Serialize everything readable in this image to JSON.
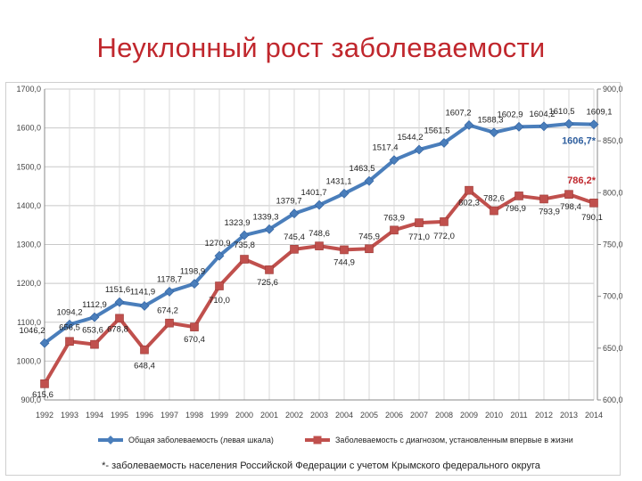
{
  "page": {
    "title": "Неуклонный рост заболеваемости",
    "footnote": "*- заболеваемость населения  Российской Федерации с учетом Крымского федерального округа"
  },
  "chart_data": {
    "type": "line",
    "title": "Неуклонный рост заболеваемости",
    "categories": [
      "1992",
      "1993",
      "1994",
      "1995",
      "1996",
      "1997",
      "1998",
      "1999",
      "2000",
      "2001",
      "2002",
      "2003",
      "2004",
      "2005",
      "2006",
      "2007",
      "2008",
      "2009",
      "2010",
      "2011",
      "2012",
      "2013",
      "2014"
    ],
    "y_left": {
      "min": 900,
      "max": 1700,
      "ticks": [
        "900,0",
        "1000,0",
        "1100,0",
        "1200,0",
        "1300,0",
        "1400,0",
        "1500,0",
        "1600,0",
        "1700,0"
      ]
    },
    "y_right": {
      "min": 600,
      "max": 900,
      "ticks": [
        "600,0",
        "650,0",
        "700,0",
        "750,0",
        "800,0",
        "850,0",
        "900,0"
      ]
    },
    "grid": true,
    "legend_position": "bottom",
    "series": [
      {
        "name": "Общая заболеваемость  (левая шкала)",
        "axis": "left",
        "color": "#4a7ebb",
        "values": [
          1046.2,
          1094.2,
          1112.9,
          1151.6,
          1141.9,
          1178.7,
          1198.9,
          1270.9,
          1323.9,
          1339.3,
          1379.7,
          1401.7,
          1431.1,
          1463.5,
          1517.4,
          1544.2,
          1561.5,
          1607.2,
          1588.3,
          1602.9,
          1604.2,
          1610.5,
          1609.1
        ],
        "labels": [
          "1046,2",
          "1094,2",
          "1112,9",
          "1151,6",
          "1141,9",
          "1178,7",
          "1198,9",
          "1270,9",
          "1323,9",
          "1339,3",
          "1379,7",
          "1401,7",
          "1431,1",
          "1463,5",
          "1517,4",
          "1544,2",
          "1561,5",
          "1607,2",
          "1588,3",
          "1602,9",
          "1604,2",
          "1610,5",
          "1609,1"
        ],
        "annotation": "1606,7*"
      },
      {
        "name": "Заболеваемость с диагнозом, установленным впервые в жизни",
        "axis": "right",
        "color": "#c0504d",
        "values": [
          615.6,
          656.5,
          653.6,
          678.8,
          648.4,
          674.2,
          670.4,
          710.0,
          735.8,
          725.6,
          745.4,
          748.6,
          744.9,
          745.9,
          763.9,
          771.0,
          772.0,
          802.3,
          782.6,
          796.9,
          793.9,
          798.4,
          790.1
        ],
        "labels": [
          "615,6",
          "656,5",
          "653,6",
          "678,8",
          "648,4",
          "674,2",
          "670,4",
          "710,0",
          "735,8",
          "725,6",
          "745,4",
          "748,6",
          "744,9",
          "745,9",
          "763,9",
          "771,0",
          "772,0",
          "802,3",
          "782,6",
          "796,9",
          "793,9",
          "798,4",
          "790,1"
        ],
        "annotation": "786,2*"
      }
    ]
  }
}
